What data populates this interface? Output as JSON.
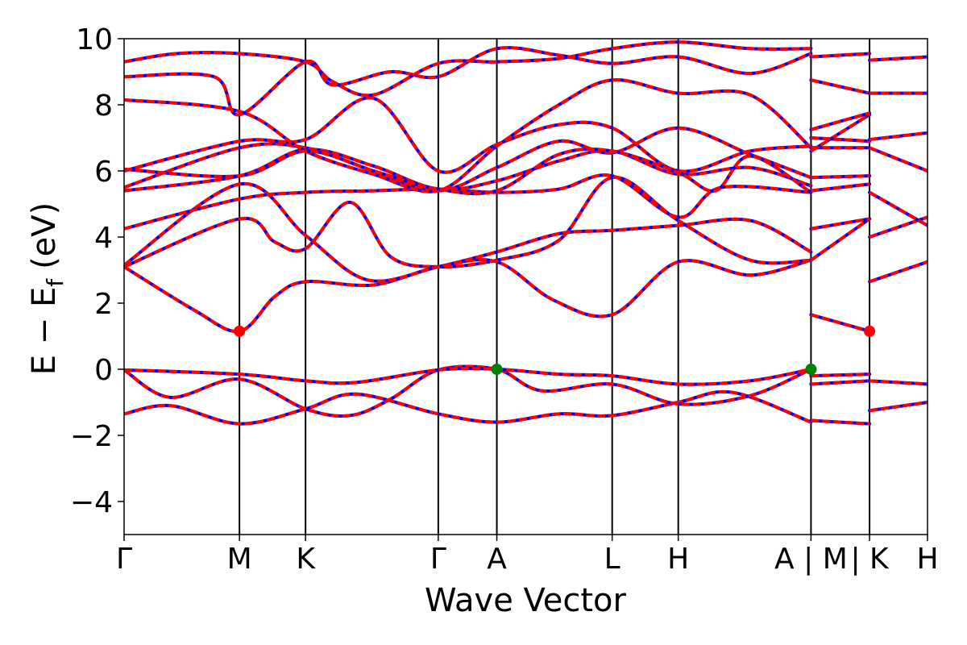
{
  "chart_data": {
    "type": "line",
    "xlabel": "Wave Vector",
    "ylabel": "E − E_f (eV)",
    "ylabel_parts": {
      "main": "E − E",
      "sub": "f",
      "unit": "(eV)"
    },
    "ylim": [
      -5,
      10
    ],
    "yticks": [
      -4,
      -2,
      0,
      2,
      4,
      6,
      8,
      10
    ],
    "ytick_labels": [
      "−4",
      "−2",
      "0",
      "2",
      "4",
      "6",
      "8",
      "10"
    ],
    "xlim": [
      0,
      13.86
    ],
    "xticks": [
      {
        "x": 0.0,
        "label": "Γ"
      },
      {
        "x": 1.99,
        "label": "M"
      },
      {
        "x": 3.13,
        "label": "K"
      },
      {
        "x": 5.42,
        "label": "Γ"
      },
      {
        "x": 6.43,
        "label": "A"
      },
      {
        "x": 8.42,
        "label": "L"
      },
      {
        "x": 9.56,
        "label": "H"
      },
      {
        "x": 11.85,
        "label": "A | M"
      },
      {
        "x": 12.86,
        "label": "| K"
      },
      {
        "x": 13.86,
        "label": "H"
      }
    ],
    "series_style": {
      "solid_color": "#0000ff",
      "dashed_color": "#ff0000"
    },
    "bands": [
      {
        "segment": [
          0,
          7
        ],
        "points": [
          [
            0,
            -1.35
          ],
          [
            0.8,
            -1.1
          ],
          [
            1.99,
            -1.65
          ],
          [
            3.13,
            -1.2
          ],
          [
            4.0,
            -0.75
          ],
          [
            5.42,
            -1.35
          ],
          [
            6.43,
            -1.6
          ],
          [
            7.5,
            -1.35
          ],
          [
            8.42,
            -1.4
          ],
          [
            9.56,
            -1.0
          ],
          [
            10.5,
            -0.7
          ],
          [
            11.85,
            -1.6
          ]
        ]
      },
      {
        "segment": [
          0,
          7
        ],
        "points": [
          [
            0,
            -0.02
          ],
          [
            0.8,
            -0.85
          ],
          [
            1.99,
            -0.3
          ],
          [
            3.13,
            -1.2
          ],
          [
            3.9,
            -1.4
          ],
          [
            4.6,
            -0.9
          ],
          [
            5.42,
            -0.02
          ],
          [
            6.43,
            0.0
          ],
          [
            7.2,
            -0.65
          ],
          [
            8.42,
            -0.45
          ],
          [
            9.56,
            -1.05
          ],
          [
            10.8,
            -0.8
          ],
          [
            11.85,
            0.0
          ]
        ]
      },
      {
        "segment": [
          0,
          7
        ],
        "points": [
          [
            0,
            -0.02
          ],
          [
            1.99,
            -0.15
          ],
          [
            3.13,
            -0.35
          ],
          [
            4.0,
            -0.4
          ],
          [
            5.42,
            -0.02
          ],
          [
            6.43,
            0.0
          ],
          [
            7.5,
            -0.15
          ],
          [
            8.42,
            -0.2
          ],
          [
            9.56,
            -0.45
          ],
          [
            10.8,
            -0.35
          ],
          [
            11.85,
            0.0
          ]
        ]
      },
      {
        "segment": [
          0,
          7
        ],
        "points": [
          [
            0,
            3.1
          ],
          [
            1.2,
            1.8
          ],
          [
            1.99,
            1.15
          ],
          [
            2.6,
            2.2
          ],
          [
            3.13,
            2.65
          ],
          [
            4.3,
            2.55
          ],
          [
            5.42,
            3.1
          ],
          [
            6.43,
            3.25
          ],
          [
            7.4,
            2.1
          ],
          [
            8.42,
            1.65
          ],
          [
            9.56,
            3.25
          ],
          [
            10.8,
            2.85
          ],
          [
            11.85,
            3.3
          ]
        ]
      },
      {
        "segment": [
          0,
          7
        ],
        "points": [
          [
            0,
            3.1
          ],
          [
            1.99,
            4.55
          ],
          [
            2.6,
            3.85
          ],
          [
            3.13,
            3.65
          ],
          [
            3.9,
            5.05
          ],
          [
            4.6,
            3.4
          ],
          [
            5.42,
            3.1
          ],
          [
            6.43,
            3.3
          ],
          [
            7.5,
            3.9
          ],
          [
            8.42,
            5.8
          ],
          [
            9.56,
            4.5
          ],
          [
            10.8,
            3.3
          ],
          [
            11.85,
            3.3
          ]
        ]
      },
      {
        "segment": [
          0,
          7
        ],
        "points": [
          [
            0,
            3.15
          ],
          [
            1.99,
            5.6
          ],
          [
            3.13,
            4.05
          ],
          [
            4.2,
            2.7
          ],
          [
            5.42,
            3.1
          ],
          [
            6.43,
            3.55
          ],
          [
            7.5,
            4.1
          ],
          [
            8.42,
            4.2
          ],
          [
            9.56,
            4.35
          ],
          [
            10.8,
            4.5
          ],
          [
            11.85,
            3.55
          ]
        ]
      },
      {
        "segment": [
          0,
          7
        ],
        "points": [
          [
            0,
            4.25
          ],
          [
            1.99,
            5.15
          ],
          [
            3.13,
            5.35
          ],
          [
            4.3,
            5.4
          ],
          [
            5.42,
            5.45
          ],
          [
            6.43,
            5.35
          ],
          [
            7.5,
            5.45
          ],
          [
            8.42,
            5.85
          ],
          [
            9.56,
            4.6
          ],
          [
            10.3,
            5.5
          ],
          [
            11.85,
            5.35
          ]
        ]
      },
      {
        "segment": [
          0,
          7
        ],
        "points": [
          [
            0,
            5.4
          ],
          [
            1.99,
            5.85
          ],
          [
            3.13,
            6.65
          ],
          [
            4.3,
            6.15
          ],
          [
            5.42,
            5.45
          ],
          [
            6.43,
            5.7
          ],
          [
            7.5,
            6.3
          ],
          [
            8.42,
            6.6
          ],
          [
            9.56,
            5.9
          ],
          [
            10.8,
            6.1
          ],
          [
            11.85,
            5.55
          ]
        ]
      },
      {
        "segment": [
          0,
          7
        ],
        "points": [
          [
            0,
            5.5
          ],
          [
            1.99,
            6.7
          ],
          [
            3.13,
            6.7
          ],
          [
            4.3,
            6.0
          ],
          [
            5.42,
            5.4
          ],
          [
            6.43,
            6.1
          ],
          [
            7.5,
            6.9
          ],
          [
            8.42,
            6.55
          ],
          [
            9.56,
            7.3
          ],
          [
            10.8,
            6.5
          ],
          [
            11.85,
            5.8
          ]
        ]
      },
      {
        "segment": [
          0,
          7
        ],
        "points": [
          [
            0,
            6.0
          ],
          [
            1.99,
            6.9
          ],
          [
            3.13,
            6.95
          ],
          [
            4.3,
            8.2
          ],
          [
            5.42,
            6.0
          ],
          [
            6.43,
            6.8
          ],
          [
            7.5,
            7.4
          ],
          [
            8.42,
            7.3
          ],
          [
            9.56,
            6.0
          ],
          [
            10.8,
            6.6
          ],
          [
            11.85,
            6.75
          ]
        ]
      },
      {
        "segment": [
          0,
          7
        ],
        "points": [
          [
            0,
            8.15
          ],
          [
            1.99,
            7.8
          ],
          [
            3.13,
            6.6
          ],
          [
            4.3,
            5.9
          ],
          [
            5.42,
            5.4
          ],
          [
            6.43,
            6.75
          ],
          [
            7.5,
            8.0
          ],
          [
            8.42,
            8.75
          ],
          [
            9.56,
            8.35
          ],
          [
            10.8,
            8.3
          ],
          [
            11.85,
            6.7
          ]
        ]
      },
      {
        "segment": [
          0,
          7
        ],
        "points": [
          [
            0,
            8.85
          ],
          [
            1.55,
            8.85
          ],
          [
            1.99,
            7.7
          ],
          [
            3.13,
            9.3
          ],
          [
            3.6,
            8.6
          ],
          [
            4.6,
            9.0
          ],
          [
            5.42,
            8.85
          ],
          [
            6.43,
            9.7
          ],
          [
            7.5,
            9.5
          ],
          [
            8.42,
            9.25
          ],
          [
            9.56,
            9.45
          ],
          [
            10.8,
            8.95
          ],
          [
            11.85,
            9.55
          ]
        ]
      },
      {
        "segment": [
          0,
          7
        ],
        "points": [
          [
            0,
            9.3
          ],
          [
            0.9,
            9.55
          ],
          [
            1.99,
            9.55
          ],
          [
            3.13,
            9.3
          ],
          [
            3.6,
            8.7
          ],
          [
            4.3,
            8.3
          ],
          [
            5.42,
            9.25
          ],
          [
            6.43,
            9.3
          ],
          [
            7.5,
            9.4
          ],
          [
            8.42,
            9.7
          ],
          [
            9.56,
            9.9
          ],
          [
            10.8,
            9.7
          ],
          [
            11.85,
            9.7
          ]
        ]
      },
      {
        "segment": [
          0,
          7
        ],
        "points": [
          [
            0,
            6.05
          ],
          [
            1.99,
            5.85
          ],
          [
            3.13,
            6.6
          ],
          [
            4.3,
            6.0
          ],
          [
            5.42,
            5.45
          ],
          [
            6.43,
            5.4
          ],
          [
            7.5,
            6.5
          ],
          [
            8.42,
            6.6
          ],
          [
            9.56,
            5.95
          ],
          [
            10.2,
            5.4
          ],
          [
            10.8,
            6.45
          ],
          [
            11.85,
            5.35
          ]
        ]
      },
      {
        "segment": [
          7,
          8
        ],
        "points": [
          [
            11.85,
            -0.2
          ],
          [
            12.86,
            -0.15
          ]
        ]
      },
      {
        "segment": [
          7,
          8
        ],
        "points": [
          [
            11.85,
            -0.45
          ],
          [
            12.86,
            -0.35
          ]
        ]
      },
      {
        "segment": [
          7,
          8
        ],
        "points": [
          [
            11.85,
            -1.55
          ],
          [
            12.86,
            -1.65
          ]
        ]
      },
      {
        "segment": [
          7,
          8
        ],
        "points": [
          [
            11.85,
            1.65
          ],
          [
            12.86,
            1.15
          ]
        ]
      },
      {
        "segment": [
          7,
          8
        ],
        "points": [
          [
            11.85,
            3.3
          ],
          [
            12.86,
            4.55
          ]
        ]
      },
      {
        "segment": [
          7,
          8
        ],
        "points": [
          [
            11.85,
            4.25
          ],
          [
            12.86,
            4.55
          ]
        ]
      },
      {
        "segment": [
          7,
          8
        ],
        "points": [
          [
            11.85,
            5.4
          ],
          [
            12.86,
            5.6
          ]
        ]
      },
      {
        "segment": [
          7,
          8
        ],
        "points": [
          [
            11.85,
            5.8
          ],
          [
            12.86,
            5.85
          ]
        ]
      },
      {
        "segment": [
          7,
          8
        ],
        "points": [
          [
            11.85,
            6.6
          ],
          [
            12.86,
            7.7
          ]
        ]
      },
      {
        "segment": [
          7,
          8
        ],
        "points": [
          [
            11.85,
            6.7
          ],
          [
            12.86,
            6.7
          ]
        ]
      },
      {
        "segment": [
          7,
          8
        ],
        "points": [
          [
            11.85,
            7.0
          ],
          [
            12.86,
            6.9
          ]
        ]
      },
      {
        "segment": [
          7,
          8
        ],
        "points": [
          [
            11.85,
            7.25
          ],
          [
            12.86,
            7.75
          ]
        ]
      },
      {
        "segment": [
          7,
          8
        ],
        "points": [
          [
            11.85,
            8.75
          ],
          [
            12.86,
            8.35
          ]
        ]
      },
      {
        "segment": [
          7,
          8
        ],
        "points": [
          [
            11.85,
            9.45
          ],
          [
            12.86,
            9.55
          ]
        ]
      },
      {
        "segment": [
          8,
          9
        ],
        "points": [
          [
            12.86,
            -0.35
          ],
          [
            13.86,
            -0.45
          ]
        ]
      },
      {
        "segment": [
          8,
          9
        ],
        "points": [
          [
            12.86,
            -1.25
          ],
          [
            13.86,
            -1.0
          ]
        ]
      },
      {
        "segment": [
          8,
          9
        ],
        "points": [
          [
            12.86,
            2.65
          ],
          [
            13.86,
            3.25
          ]
        ]
      },
      {
        "segment": [
          8,
          9
        ],
        "points": [
          [
            12.86,
            4.0
          ],
          [
            13.86,
            4.6
          ]
        ]
      },
      {
        "segment": [
          8,
          9
        ],
        "points": [
          [
            12.86,
            5.35
          ],
          [
            13.86,
            4.35
          ]
        ]
      },
      {
        "segment": [
          8,
          9
        ],
        "points": [
          [
            12.86,
            6.7
          ],
          [
            13.86,
            6.0
          ]
        ]
      },
      {
        "segment": [
          8,
          9
        ],
        "points": [
          [
            12.86,
            6.95
          ],
          [
            13.86,
            7.15
          ]
        ]
      },
      {
        "segment": [
          8,
          9
        ],
        "points": [
          [
            12.86,
            8.35
          ],
          [
            13.86,
            8.35
          ]
        ]
      },
      {
        "segment": [
          8,
          9
        ],
        "points": [
          [
            12.86,
            9.35
          ],
          [
            13.86,
            9.45
          ]
        ]
      }
    ],
    "markers": [
      {
        "x": 1.99,
        "y": 1.15,
        "color": "#ff0000",
        "kind": "cbm"
      },
      {
        "x": 12.86,
        "y": 1.15,
        "color": "#ff0000",
        "kind": "cbm"
      },
      {
        "x": 6.43,
        "y": 0.0,
        "color": "#008000",
        "kind": "vbm"
      },
      {
        "x": 11.85,
        "y": 0.0,
        "color": "#008000",
        "kind": "vbm"
      }
    ]
  }
}
